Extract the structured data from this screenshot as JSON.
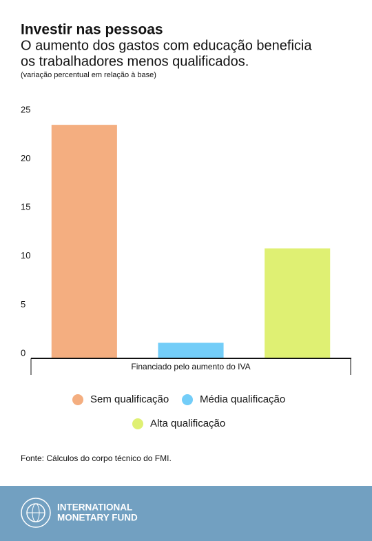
{
  "chart_data": {
    "type": "bar",
    "title": "Investir nas pessoas",
    "subtitle": [
      "O aumento dos gastos com educação beneficia",
      "os trabalhadores menos qualificados."
    ],
    "note": "(variação percentual em relação à base)",
    "categories": [
      "Financiado pelo aumento do IVA"
    ],
    "series": [
      {
        "name": "Sem qualificação",
        "color": "#f4ae80",
        "values": [
          24
        ]
      },
      {
        "name": "Média qualificação",
        "color": "#73cdf8",
        "values": [
          1.6
        ]
      },
      {
        "name": "Alta qualificação",
        "color": "#dff073",
        "values": [
          11.3
        ]
      }
    ],
    "ylim": [
      0,
      25
    ],
    "yticks": [
      0,
      5,
      10,
      15,
      20,
      25
    ],
    "grid": false,
    "source": "Fonte: Cálculos do corpo técnico do FMI."
  },
  "footer": {
    "line1": "INTERNATIONAL",
    "line2": "MONETARY FUND"
  }
}
